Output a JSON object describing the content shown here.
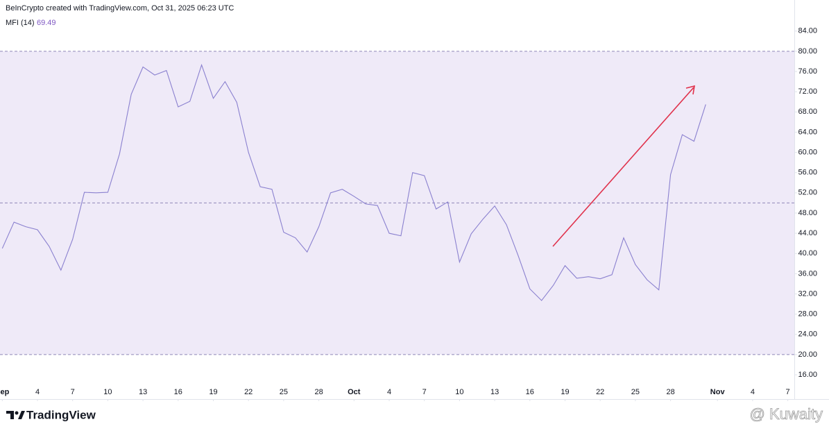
{
  "header": "BeInCrypto created with TradingView.com, Oct 31, 2025 06:23 UTC",
  "logo": "TradingView",
  "watermark": "@ Kuwaity",
  "chart_data": {
    "type": "line",
    "indicator": "MFI (14)",
    "x": [
      "2025-09-01",
      "2025-09-02",
      "2025-09-03",
      "2025-09-04",
      "2025-09-05",
      "2025-09-06",
      "2025-09-07",
      "2025-09-08",
      "2025-09-09",
      "2025-09-10",
      "2025-09-11",
      "2025-09-12",
      "2025-09-13",
      "2025-09-14",
      "2025-09-15",
      "2025-09-16",
      "2025-09-17",
      "2025-09-18",
      "2025-09-19",
      "2025-09-20",
      "2025-09-21",
      "2025-09-22",
      "2025-09-23",
      "2025-09-24",
      "2025-09-25",
      "2025-09-26",
      "2025-09-27",
      "2025-09-28",
      "2025-09-29",
      "2025-09-30",
      "2025-10-01",
      "2025-10-02",
      "2025-10-03",
      "2025-10-04",
      "2025-10-05",
      "2025-10-06",
      "2025-10-07",
      "2025-10-08",
      "2025-10-09",
      "2025-10-10",
      "2025-10-11",
      "2025-10-12",
      "2025-10-13",
      "2025-10-14",
      "2025-10-15",
      "2025-10-16",
      "2025-10-17",
      "2025-10-18",
      "2025-10-19",
      "2025-10-20",
      "2025-10-21",
      "2025-10-22",
      "2025-10-23",
      "2025-10-24",
      "2025-10-25",
      "2025-10-26",
      "2025-10-27",
      "2025-10-28",
      "2025-10-29",
      "2025-10-30",
      "2025-10-31"
    ],
    "series": [
      {
        "name": "MFI (14)",
        "color": "#8a80cf",
        "values": [
          41.0,
          46.2,
          45.3,
          44.7,
          41.4,
          36.7,
          42.8,
          52.1,
          52.0,
          52.1,
          59.7,
          71.5,
          76.9,
          75.3,
          76.2,
          69.0,
          70.1,
          77.3,
          70.7,
          74.0,
          69.9,
          60.0,
          53.2,
          52.7,
          44.2,
          43.1,
          40.3,
          45.3,
          52.0,
          52.7,
          51.3,
          49.8,
          49.5,
          44.0,
          43.5,
          56.0,
          55.4,
          48.8,
          50.2,
          38.3,
          43.9,
          46.8,
          49.4,
          45.7,
          39.6,
          33.0,
          30.7,
          33.7,
          37.6,
          35.1,
          35.4,
          35.0,
          35.8,
          43.1,
          37.8,
          34.8,
          32.8,
          55.6,
          63.5,
          62.2,
          69.49
        ]
      }
    ],
    "band": [
      20,
      80
    ],
    "band_color": "#efeaf8",
    "midline": 50,
    "ylim": [
      11.2,
      87.4
    ],
    "yticks": [
      {
        "value": 16,
        "label": "16.00"
      },
      {
        "value": 20,
        "label": "20.00"
      },
      {
        "value": 24,
        "label": "24.00"
      },
      {
        "value": 28,
        "label": "28.00"
      },
      {
        "value": 32,
        "label": "32.00"
      },
      {
        "value": 36,
        "label": "36.00"
      },
      {
        "value": 40,
        "label": "40.00"
      },
      {
        "value": 44,
        "label": "44.00"
      },
      {
        "value": 48,
        "label": "48.00"
      },
      {
        "value": 52,
        "label": "52.00"
      },
      {
        "value": 56,
        "label": "56.00"
      },
      {
        "value": 60,
        "label": "60.00"
      },
      {
        "value": 64,
        "label": "64.00"
      },
      {
        "value": 68,
        "label": "68.00"
      },
      {
        "value": 72,
        "label": "72.00"
      },
      {
        "value": 76,
        "label": "76.00"
      },
      {
        "value": 80,
        "label": "80.00"
      },
      {
        "value": 84,
        "label": "84.00"
      }
    ],
    "xlim": [
      "2025-09-01",
      "2025-11-08"
    ],
    "xticks": [
      {
        "value": "2025-09-01",
        "label": "Sep"
      },
      {
        "value": "2025-09-04",
        "label": "4"
      },
      {
        "value": "2025-09-07",
        "label": "7"
      },
      {
        "value": "2025-09-10",
        "label": "10"
      },
      {
        "value": "2025-09-13",
        "label": "13"
      },
      {
        "value": "2025-09-16",
        "label": "16"
      },
      {
        "value": "2025-09-19",
        "label": "19"
      },
      {
        "value": "2025-09-22",
        "label": "22"
      },
      {
        "value": "2025-09-25",
        "label": "25"
      },
      {
        "value": "2025-09-28",
        "label": "28"
      },
      {
        "value": "2025-10-01",
        "label": "Oct"
      },
      {
        "value": "2025-10-04",
        "label": "4"
      },
      {
        "value": "2025-10-07",
        "label": "7"
      },
      {
        "value": "2025-10-10",
        "label": "10"
      },
      {
        "value": "2025-10-13",
        "label": "13"
      },
      {
        "value": "2025-10-16",
        "label": "16"
      },
      {
        "value": "2025-10-19",
        "label": "19"
      },
      {
        "value": "2025-10-22",
        "label": "22"
      },
      {
        "value": "2025-10-25",
        "label": "25"
      },
      {
        "value": "2025-10-28",
        "label": "28"
      },
      {
        "value": "2025-11-01",
        "label": "Nov"
      },
      {
        "value": "2025-11-04",
        "label": "4"
      },
      {
        "value": "2025-11-07",
        "label": "7"
      }
    ]
  }
}
